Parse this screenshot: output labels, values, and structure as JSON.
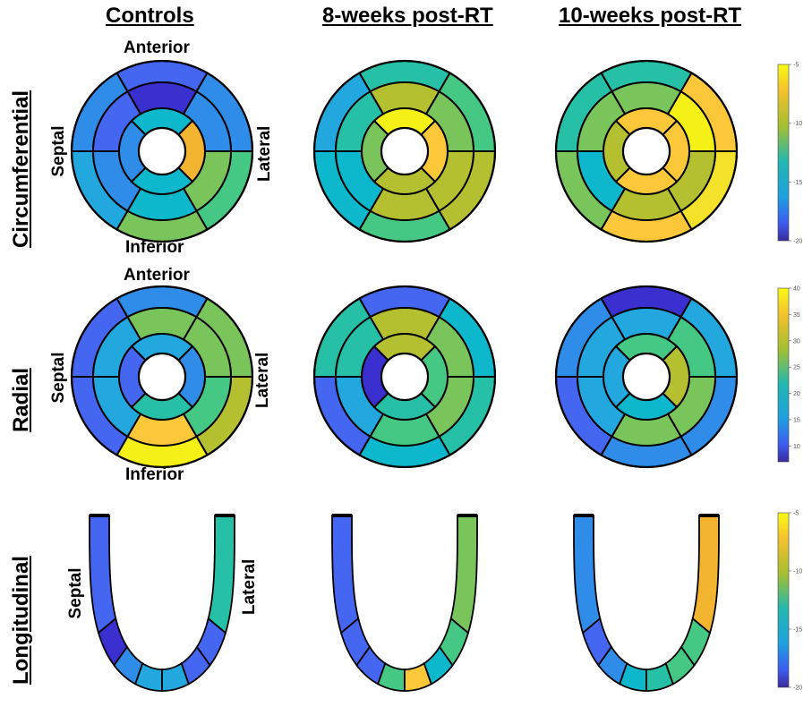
{
  "columns": {
    "controls": "Controls",
    "wk8": "8-weeks post-RT",
    "wk10": "10-weeks post-RT"
  },
  "rows": {
    "circ": "Circumferential",
    "radial": "Radial",
    "long": "Longitudinal"
  },
  "directions": {
    "anterior": "Anterior",
    "inferior": "Inferior",
    "septal": "Septal",
    "lateral": "Lateral"
  },
  "colorbars": {
    "circ": {
      "ticks": [
        "-5",
        "-10",
        "-15",
        "-20"
      ],
      "min": -20,
      "max": -5
    },
    "radial": {
      "ticks": [
        "40",
        "35",
        "30",
        "25",
        "20",
        "15",
        "10"
      ],
      "min": 7,
      "max": 40
    },
    "long": {
      "ticks": [
        "-5",
        "-10",
        "-15",
        "-20"
      ],
      "min": -20,
      "max": -5
    }
  },
  "colors": {
    "dark_blue": "#3a2fcf",
    "blue": "#4466f0",
    "med_blue": "#2f8ce8",
    "sky": "#22a8de",
    "teal": "#0eb8cc",
    "teal_green": "#26c0a6",
    "green": "#45c883",
    "lgreen": "#7ac45c",
    "olive": "#b4c02f",
    "orange": "#f3b530",
    "gold": "#fcc83a",
    "yellow": "#f5f016",
    "lyellow": "#f3e12a"
  },
  "bullseyes": {
    "circ": {
      "controls": {
        "outer": [
          "blue",
          "med_blue",
          "green",
          "lgreen",
          "sky",
          "med_blue"
        ],
        "mid": [
          "dark_blue",
          "med_blue",
          "lgreen",
          "teal",
          "med_blue",
          "blue"
        ],
        "inner": [
          "teal",
          "orange",
          "teal",
          "med_blue"
        ]
      },
      "wk8": {
        "outer": [
          "teal_green",
          "green",
          "olive",
          "green",
          "teal",
          "sky"
        ],
        "mid": [
          "olive",
          "lgreen",
          "olive",
          "olive",
          "teal",
          "teal_green"
        ],
        "inner": [
          "yellow",
          "gold",
          "olive",
          "lgreen"
        ]
      },
      "wk10": {
        "outer": [
          "teal_green",
          "gold",
          "lyellow",
          "gold",
          "lgreen",
          "teal_green"
        ],
        "mid": [
          "lgreen",
          "yellow",
          "olive",
          "olive",
          "teal",
          "lgreen"
        ],
        "inner": [
          "gold",
          "gold",
          "gold",
          "olive"
        ]
      }
    },
    "radial": {
      "controls": {
        "outer": [
          "med_blue",
          "lgreen",
          "olive",
          "yellow",
          "blue",
          "blue"
        ],
        "mid": [
          "lgreen",
          "lgreen",
          "green",
          "gold",
          "sky",
          "sky"
        ],
        "inner": [
          "sky",
          "med_blue",
          "teal_green",
          "blue"
        ]
      },
      "wk8": {
        "outer": [
          "blue",
          "teal",
          "teal_green",
          "teal",
          "blue",
          "teal_green"
        ],
        "mid": [
          "olive",
          "lgreen",
          "lgreen",
          "green",
          "sky",
          "teal_green"
        ],
        "inner": [
          "olive",
          "green",
          "teal_green",
          "dark_blue"
        ]
      },
      "wk10": {
        "outer": [
          "dark_blue",
          "sky",
          "med_blue",
          "med_blue",
          "blue",
          "med_blue"
        ],
        "mid": [
          "sky",
          "green",
          "lgreen",
          "lgreen",
          "sky",
          "sky"
        ],
        "inner": [
          "green",
          "olive",
          "teal",
          "sky"
        ]
      }
    },
    "long": {
      "controls": {
        "septal": [
          "blue",
          "dark_blue",
          "med_blue"
        ],
        "apical": [
          "sky",
          "sky"
        ],
        "lateral": [
          "blue",
          "blue",
          "teal_green"
        ]
      },
      "wk8": {
        "septal": [
          "blue",
          "blue",
          "blue"
        ],
        "apical": [
          "green",
          "gold"
        ],
        "lateral": [
          "teal",
          "green",
          "lgreen"
        ]
      },
      "wk10": {
        "septal": [
          "med_blue",
          "blue",
          "med_blue"
        ],
        "apical": [
          "teal",
          "teal_green"
        ],
        "lateral": [
          "green",
          "green",
          "orange"
        ]
      }
    }
  }
}
